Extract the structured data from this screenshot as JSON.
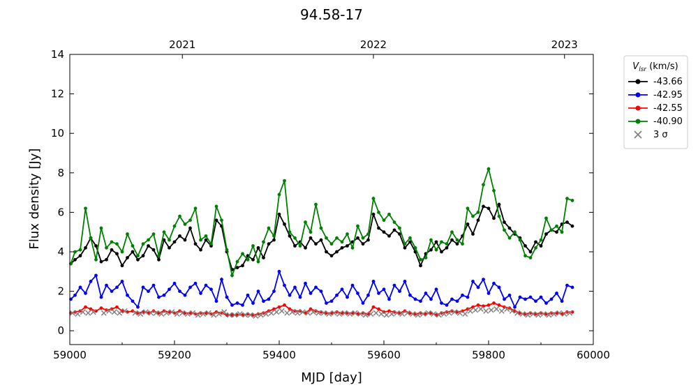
{
  "chart_data": {
    "type": "line",
    "title": "94.58-17",
    "xlabel": "MJD [day]",
    "ylabel": "Flux density [Jy]",
    "xlim": [
      59000,
      60000
    ],
    "ylim": [
      -0.7,
      14
    ],
    "xticks": [
      "59000",
      "59200",
      "59400",
      "59600",
      "59800",
      "60000"
    ],
    "yticks": [
      "0",
      "2",
      "4",
      "6",
      "8",
      "10",
      "12",
      "14"
    ],
    "top_axis_ticks": [
      {
        "label": "2021",
        "mjd": 59215
      },
      {
        "label": "2022",
        "mjd": 59580
      },
      {
        "label": "2023",
        "mjd": 59945
      }
    ],
    "grid": false,
    "legend": {
      "title": "V_lsr (km/s)",
      "title_main": "V",
      "title_sub": "lsr",
      "title_rest": " (km/s)",
      "placement": "outside-right-top",
      "sigma_label": "3 σ"
    },
    "series": [
      {
        "name": "-43.66",
        "color": "#000000",
        "x": [
          59002,
          59010,
          59020,
          59030,
          59040,
          59050,
          59060,
          59070,
          59080,
          59090,
          59100,
          59110,
          59120,
          59130,
          59140,
          59150,
          59160,
          59170,
          59180,
          59190,
          59200,
          59210,
          59220,
          59230,
          59240,
          59250,
          59260,
          59270,
          59280,
          59290,
          59300,
          59310,
          59320,
          59330,
          59340,
          59350,
          59360,
          59370,
          59380,
          59390,
          59400,
          59410,
          59420,
          59430,
          59440,
          59450,
          59460,
          59470,
          59480,
          59490,
          59500,
          59510,
          59520,
          59530,
          59540,
          59550,
          59560,
          59570,
          59580,
          59590,
          59600,
          59610,
          59620,
          59630,
          59640,
          59650,
          59660,
          59670,
          59680,
          59690,
          59700,
          59710,
          59720,
          59730,
          59740,
          59750,
          59760,
          59770,
          59780,
          59790,
          59800,
          59810,
          59820,
          59830,
          59840,
          59850,
          59860,
          59870,
          59880,
          59890,
          59900,
          59910,
          59920,
          59930,
          59940,
          59950,
          59960
        ],
        "y": [
          3.4,
          3.6,
          3.8,
          4.2,
          4.7,
          4.3,
          3.5,
          3.6,
          4.1,
          3.9,
          3.3,
          3.7,
          4.0,
          3.6,
          3.8,
          4.3,
          4.1,
          3.6,
          4.6,
          4.2,
          4.5,
          4.8,
          4.6,
          5.2,
          4.4,
          4.1,
          4.6,
          4.3,
          5.6,
          5.3,
          4.0,
          3.1,
          3.2,
          3.3,
          3.8,
          3.6,
          4.2,
          3.7,
          4.4,
          4.6,
          5.9,
          5.4,
          4.8,
          4.3,
          4.5,
          4.2,
          4.7,
          4.4,
          4.6,
          4.0,
          3.8,
          4.0,
          4.2,
          4.3,
          4.5,
          4.7,
          4.4,
          4.6,
          5.9,
          5.2,
          5.0,
          4.8,
          5.1,
          4.9,
          4.2,
          4.5,
          4.0,
          3.3,
          3.9,
          4.1,
          4.5,
          4.0,
          4.2,
          4.6,
          4.4,
          4.8,
          5.4,
          4.9,
          5.6,
          6.3,
          6.2,
          5.7,
          6.4,
          5.5,
          5.2,
          4.9,
          4.7,
          4.3,
          4.0,
          4.5,
          4.3,
          4.9,
          5.1,
          5.0,
          5.4,
          5.5,
          5.3
        ]
      },
      {
        "name": "-42.95",
        "color": "#0000ff",
        "x": [
          59002,
          59010,
          59020,
          59030,
          59040,
          59050,
          59060,
          59070,
          59080,
          59090,
          59100,
          59110,
          59120,
          59130,
          59140,
          59150,
          59160,
          59170,
          59180,
          59190,
          59200,
          59210,
          59220,
          59230,
          59240,
          59250,
          59260,
          59270,
          59280,
          59290,
          59300,
          59310,
          59320,
          59330,
          59340,
          59350,
          59360,
          59370,
          59380,
          59390,
          59400,
          59410,
          59420,
          59430,
          59440,
          59450,
          59460,
          59470,
          59480,
          59490,
          59500,
          59510,
          59520,
          59530,
          59540,
          59550,
          59560,
          59570,
          59580,
          59590,
          59600,
          59610,
          59620,
          59630,
          59640,
          59650,
          59660,
          59670,
          59680,
          59690,
          59700,
          59710,
          59720,
          59730,
          59740,
          59750,
          59760,
          59770,
          59780,
          59790,
          59800,
          59810,
          59820,
          59830,
          59840,
          59850,
          59860,
          59870,
          59880,
          59890,
          59900,
          59910,
          59920,
          59930,
          59940,
          59950,
          59960
        ],
        "y": [
          1.6,
          1.8,
          2.2,
          1.9,
          2.5,
          2.8,
          1.7,
          2.3,
          2.0,
          2.2,
          2.5,
          1.8,
          1.5,
          1.2,
          2.2,
          2.0,
          2.3,
          1.7,
          1.8,
          2.1,
          2.4,
          2.0,
          1.8,
          2.2,
          2.4,
          1.9,
          2.3,
          2.1,
          1.5,
          2.6,
          1.7,
          1.3,
          1.4,
          1.3,
          1.8,
          1.4,
          2.0,
          1.5,
          1.6,
          2.0,
          3.0,
          2.3,
          1.8,
          2.2,
          1.7,
          2.4,
          1.9,
          2.2,
          2.0,
          1.4,
          1.5,
          1.8,
          2.1,
          1.7,
          2.3,
          1.9,
          1.4,
          1.8,
          2.5,
          1.9,
          2.1,
          1.6,
          2.3,
          2.0,
          2.5,
          1.8,
          1.6,
          1.5,
          1.9,
          1.6,
          2.1,
          1.4,
          1.3,
          1.6,
          1.5,
          1.8,
          1.7,
          2.5,
          2.2,
          2.6,
          1.9,
          2.4,
          2.2,
          1.6,
          1.8,
          1.2,
          1.7,
          1.6,
          1.7,
          1.5,
          1.7,
          1.4,
          1.6,
          1.9,
          1.5,
          2.3,
          2.2
        ]
      },
      {
        "name": "-42.55",
        "color": "#ff0000",
        "x": [
          59002,
          59010,
          59020,
          59030,
          59040,
          59050,
          59060,
          59070,
          59080,
          59090,
          59100,
          59110,
          59120,
          59130,
          59140,
          59150,
          59160,
          59170,
          59180,
          59190,
          59200,
          59210,
          59220,
          59230,
          59240,
          59250,
          59260,
          59270,
          59280,
          59290,
          59300,
          59310,
          59320,
          59330,
          59340,
          59350,
          59360,
          59370,
          59380,
          59390,
          59400,
          59410,
          59420,
          59430,
          59440,
          59450,
          59460,
          59470,
          59480,
          59490,
          59500,
          59510,
          59520,
          59530,
          59540,
          59550,
          59560,
          59570,
          59580,
          59590,
          59600,
          59610,
          59620,
          59630,
          59640,
          59650,
          59660,
          59670,
          59680,
          59690,
          59700,
          59710,
          59720,
          59730,
          59740,
          59750,
          59760,
          59770,
          59780,
          59790,
          59800,
          59810,
          59820,
          59830,
          59840,
          59850,
          59860,
          59870,
          59880,
          59890,
          59900,
          59910,
          59920,
          59930,
          59940,
          59950,
          59960
        ],
        "y": [
          0.9,
          0.95,
          1.0,
          1.2,
          1.1,
          1.0,
          1.15,
          1.05,
          1.1,
          1.2,
          1.0,
          0.95,
          1.0,
          0.9,
          0.95,
          0.9,
          1.0,
          0.9,
          1.0,
          0.95,
          0.9,
          1.0,
          0.9,
          0.9,
          0.85,
          0.9,
          0.9,
          0.85,
          0.95,
          0.9,
          0.8,
          0.8,
          0.8,
          0.8,
          0.85,
          0.8,
          0.85,
          0.9,
          1.0,
          1.1,
          1.2,
          1.3,
          1.1,
          1.0,
          1.0,
          0.9,
          1.1,
          1.0,
          0.95,
          0.9,
          0.9,
          0.95,
          0.9,
          0.9,
          0.9,
          0.85,
          0.9,
          0.85,
          1.2,
          1.1,
          0.95,
          1.0,
          0.95,
          0.9,
          1.0,
          0.9,
          0.85,
          0.9,
          0.85,
          0.9,
          0.8,
          0.9,
          0.95,
          1.0,
          0.95,
          1.0,
          1.1,
          1.2,
          1.3,
          1.25,
          1.3,
          1.4,
          1.3,
          1.2,
          1.15,
          1.0,
          0.9,
          0.85,
          0.9,
          0.85,
          0.9,
          0.85,
          0.9,
          0.9,
          0.85,
          0.95,
          0.95
        ]
      },
      {
        "name": "-40.90",
        "color": "#008000",
        "x": [
          59002,
          59010,
          59020,
          59030,
          59040,
          59050,
          59060,
          59070,
          59080,
          59090,
          59100,
          59110,
          59120,
          59130,
          59140,
          59150,
          59160,
          59170,
          59180,
          59190,
          59200,
          59210,
          59220,
          59230,
          59240,
          59250,
          59260,
          59270,
          59280,
          59290,
          59300,
          59310,
          59320,
          59330,
          59340,
          59350,
          59360,
          59370,
          59380,
          59390,
          59400,
          59410,
          59420,
          59430,
          59440,
          59450,
          59460,
          59470,
          59480,
          59490,
          59500,
          59510,
          59520,
          59530,
          59540,
          59550,
          59560,
          59570,
          59580,
          59590,
          59600,
          59610,
          59620,
          59630,
          59640,
          59650,
          59660,
          59670,
          59680,
          59690,
          59700,
          59710,
          59720,
          59730,
          59740,
          59750,
          59760,
          59770,
          59780,
          59790,
          59800,
          59810,
          59820,
          59830,
          59840,
          59850,
          59860,
          59870,
          59880,
          59890,
          59900,
          59910,
          59920,
          59930,
          59940,
          59950,
          59960
        ],
        "y": [
          3.4,
          4.0,
          4.1,
          6.2,
          4.7,
          3.6,
          5.2,
          4.2,
          4.5,
          4.4,
          4.0,
          4.9,
          4.3,
          3.8,
          4.4,
          4.6,
          4.9,
          3.8,
          5.0,
          4.6,
          5.3,
          5.8,
          5.4,
          5.6,
          6.2,
          4.6,
          4.8,
          4.4,
          6.3,
          5.6,
          4.1,
          2.8,
          3.5,
          3.9,
          3.6,
          4.3,
          3.5,
          4.5,
          5.2,
          4.8,
          6.9,
          7.6,
          5.0,
          4.7,
          4.3,
          5.5,
          5.0,
          6.4,
          5.2,
          4.7,
          4.4,
          4.7,
          4.5,
          4.9,
          4.2,
          5.3,
          4.7,
          4.9,
          6.7,
          6.0,
          5.6,
          5.9,
          5.5,
          5.2,
          4.4,
          4.7,
          4.2,
          3.6,
          3.7,
          4.6,
          4.1,
          4.5,
          4.4,
          5.0,
          4.6,
          4.4,
          6.2,
          5.8,
          6.0,
          7.4,
          8.2,
          7.1,
          5.8,
          5.1,
          4.7,
          5.0,
          4.6,
          3.8,
          3.7,
          4.2,
          4.6,
          5.7,
          5.1,
          5.3,
          5.0,
          6.7,
          6.6
        ]
      },
      {
        "name": "3 σ",
        "color": "#808080",
        "marker": "x",
        "x": [
          59005,
          59015,
          59025,
          59035,
          59045,
          59065,
          59075,
          59085,
          59095,
          59105,
          59125,
          59135,
          59145,
          59155,
          59165,
          59175,
          59185,
          59195,
          59205,
          59215,
          59225,
          59235,
          59245,
          59255,
          59265,
          59275,
          59285,
          59295,
          59305,
          59315,
          59325,
          59335,
          59345,
          59355,
          59365,
          59375,
          59385,
          59395,
          59405,
          59415,
          59425,
          59435,
          59445,
          59455,
          59465,
          59475,
          59485,
          59495,
          59505,
          59515,
          59525,
          59535,
          59545,
          59555,
          59565,
          59575,
          59585,
          59595,
          59605,
          59615,
          59625,
          59635,
          59645,
          59655,
          59665,
          59675,
          59685,
          59695,
          59705,
          59715,
          59725,
          59735,
          59745,
          59755,
          59765,
          59775,
          59785,
          59795,
          59805,
          59815,
          59825,
          59835,
          59845,
          59855,
          59865,
          59875,
          59885,
          59895,
          59905,
          59915,
          59925,
          59935,
          59945,
          59955
        ],
        "y": [
          0.9,
          0.85,
          0.95,
          0.9,
          0.95,
          0.9,
          1.0,
          0.95,
          0.9,
          1.0,
          0.9,
          0.85,
          0.95,
          0.9,
          0.9,
          0.85,
          0.9,
          0.95,
          0.85,
          0.9,
          0.85,
          0.9,
          0.8,
          0.85,
          0.9,
          0.8,
          0.85,
          0.95,
          0.8,
          0.8,
          0.85,
          0.8,
          0.8,
          0.75,
          0.8,
          0.85,
          0.9,
          0.95,
          1.0,
          0.9,
          0.95,
          0.9,
          0.95,
          0.9,
          0.95,
          0.9,
          0.9,
          0.85,
          0.9,
          0.85,
          0.9,
          0.85,
          0.9,
          0.85,
          0.8,
          0.85,
          0.9,
          0.85,
          0.8,
          0.85,
          0.9,
          0.85,
          0.9,
          0.85,
          0.8,
          0.85,
          0.9,
          0.85,
          0.8,
          0.85,
          0.9,
          0.95,
          0.9,
          0.85,
          1.0,
          1.05,
          1.1,
          1.0,
          1.05,
          1.1,
          1.0,
          1.1,
          1.0,
          0.9,
          0.85,
          0.8,
          0.85,
          0.8,
          0.85,
          0.8,
          0.85,
          0.9,
          0.85,
          0.9
        ]
      }
    ]
  }
}
